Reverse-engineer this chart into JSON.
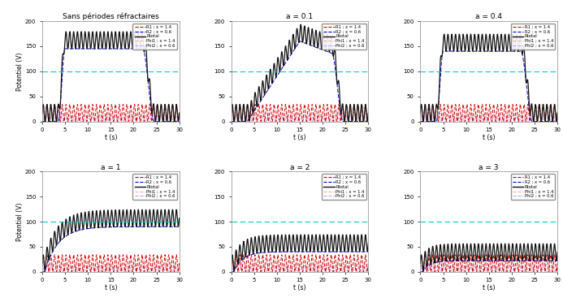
{
  "titles": [
    "Sans périodes réfractaires",
    "a = 0.1",
    "a = 0.4",
    "a = 1",
    "a = 2",
    "a = 3"
  ],
  "xlabel": "t (s)",
  "ylabel": "Potentiel (V)",
  "ylim": [
    0,
    200
  ],
  "xlim": [
    0,
    30
  ],
  "xticks": [
    0,
    5,
    10,
    15,
    20,
    25,
    30
  ],
  "yticks": [
    0,
    50,
    100,
    150,
    200
  ],
  "colors": {
    "R1": "#cc0000",
    "R2": "#0000cc",
    "Rtotal": "#111111",
    "Phi1": "#ffaaaa",
    "Phi2": "#aaaaff",
    "cyan_line": "#00cccc"
  },
  "legend_entries": [
    "R1 ; x = 1.4",
    "R2 ; x = 0.6",
    "Rtotal",
    "Phi1 ; x = 1.4",
    "Phi2 ; x = 0.6"
  ],
  "dt": 0.02,
  "T": 30,
  "freq_osc": 1.2,
  "freq_phi": 1.0,
  "cyan_level": 100,
  "plateau_start": 3.5,
  "plateau_end": 22.0,
  "rise_time": 1.5,
  "fall_time": 2.5
}
